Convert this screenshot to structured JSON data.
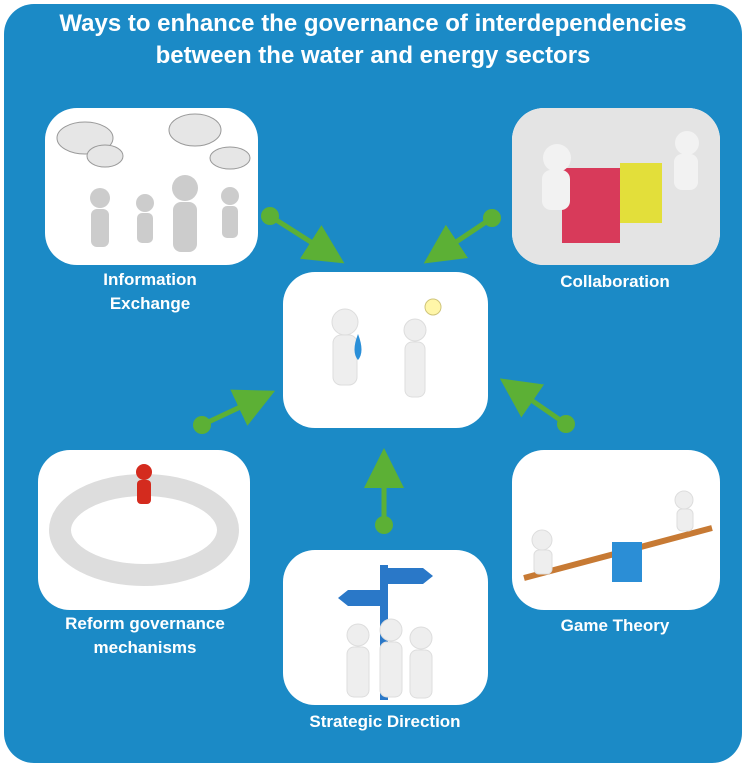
{
  "title": "Ways to enhance the governance of interdependencies between the water and energy sectors",
  "nodes": [
    {
      "label": "Information Exchange"
    },
    {
      "label": "Collaboration"
    },
    {
      "label": "Reform governance mechanisms"
    },
    {
      "label": "Strategic Direction"
    },
    {
      "label": "Game Theory"
    }
  ]
}
